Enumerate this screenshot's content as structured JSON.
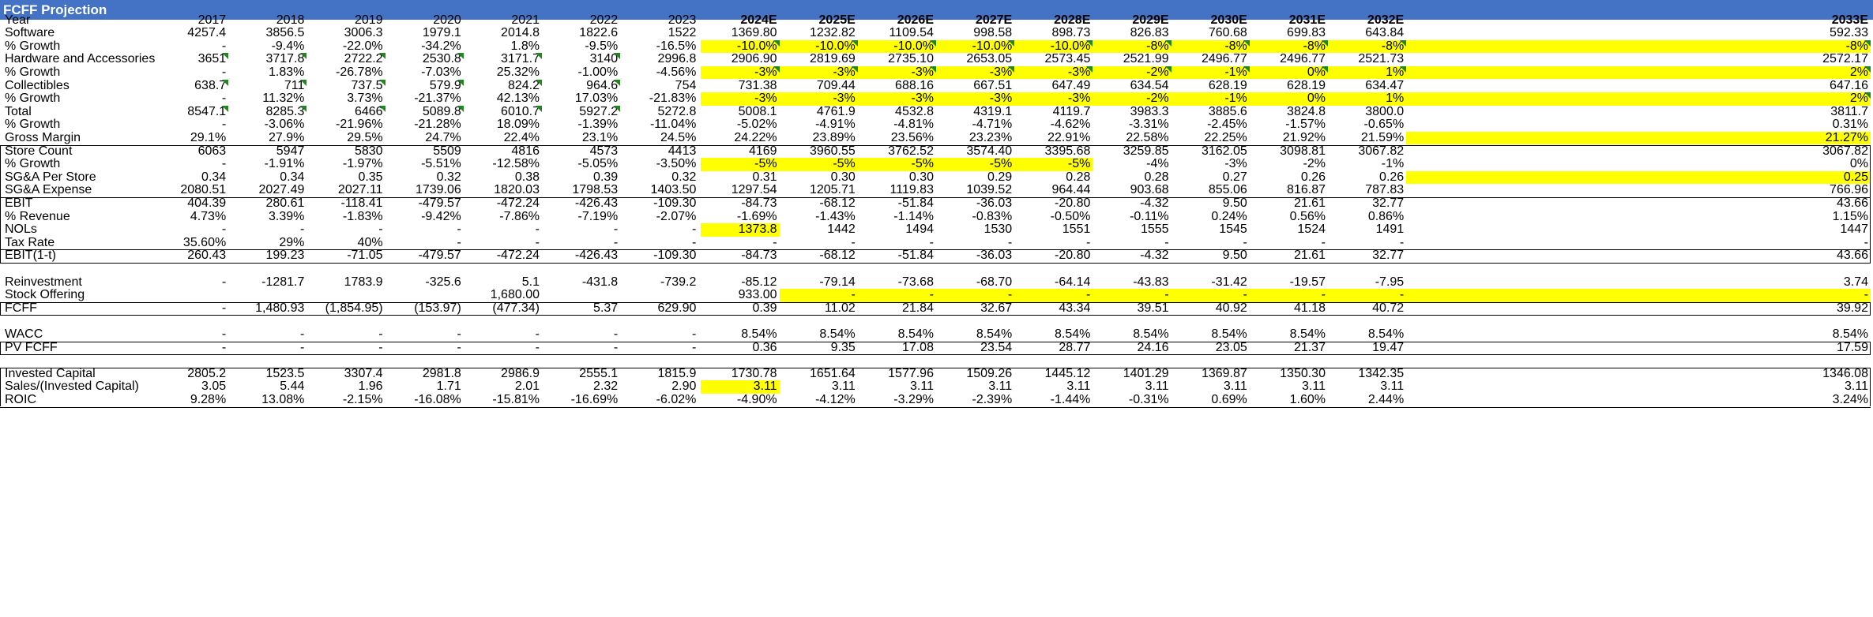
{
  "title": "FCFF Projection",
  "colors": {
    "header": "#4472c4",
    "highlight": "#ffff00",
    "note_triangle": "#1e8a1e"
  },
  "columns": [
    "2017",
    "2018",
    "2019",
    "2020",
    "2021",
    "2022",
    "2023",
    "2024E",
    "2025E",
    "2026E",
    "2027E",
    "2028E",
    "2029E",
    "2030E",
    "2031E",
    "2032E",
    "2033E"
  ],
  "rows": [
    {
      "label": "Year",
      "header": true,
      "values": [
        "2017",
        "2018",
        "2019",
        "2020",
        "2021",
        "2022",
        "2023",
        "2024E",
        "2025E",
        "2026E",
        "2027E",
        "2028E",
        "2029E",
        "2030E",
        "2031E",
        "2032E",
        "2033E"
      ]
    },
    {
      "label": "Software",
      "values": [
        "4257.4",
        "3856.5",
        "3006.3",
        "1979.1",
        "2014.8",
        "1822.6",
        "1522",
        "1369.80",
        "1232.82",
        "1109.54",
        "998.58",
        "898.73",
        "826.83",
        "760.68",
        "699.83",
        "643.84",
        "592.33"
      ]
    },
    {
      "label": "% Growth",
      "values": [
        "-",
        "-9.4%",
        "-22.0%",
        "-34.2%",
        "1.8%",
        "-9.5%",
        "-16.5%",
        "-10.0%",
        "-10.0%",
        "-10.0%",
        "-10.0%",
        "-10.0%",
        "-8%",
        "-8%",
        "-8%",
        "-8%",
        "-8%"
      ],
      "hl": [
        7,
        8,
        9,
        10,
        11,
        12,
        13,
        14,
        15,
        16
      ],
      "tri": [
        7,
        8,
        9,
        10,
        11,
        12,
        13,
        14,
        15,
        16
      ]
    },
    {
      "label": "Hardware and Accessories",
      "values": [
        "3651",
        "3717.8",
        "2722.2",
        "2530.8",
        "3171.7",
        "3140",
        "2996.8",
        "2906.90",
        "2819.69",
        "2735.10",
        "2653.05",
        "2573.45",
        "2521.99",
        "2496.77",
        "2496.77",
        "2521.73",
        "2572.17"
      ],
      "tri": [
        0,
        1,
        2,
        3,
        4,
        5
      ]
    },
    {
      "label": "% Growth",
      "values": [
        "-",
        "1.83%",
        "-26.78%",
        "-7.03%",
        "25.32%",
        "-1.00%",
        "-4.56%",
        "-3%",
        "-3%",
        "-3%",
        "-3%",
        "-3%",
        "-2%",
        "-1%",
        "0%",
        "1%",
        "2%"
      ],
      "hl": [
        7,
        8,
        9,
        10,
        11,
        12,
        13,
        14,
        15,
        16
      ],
      "tri": [
        7,
        8,
        9,
        10,
        11,
        12,
        13,
        14,
        15,
        16
      ]
    },
    {
      "label": "Collectibles",
      "values": [
        "638.7",
        "711",
        "737.5",
        "579.9",
        "824.2",
        "964.6",
        "754",
        "731.38",
        "709.44",
        "688.16",
        "667.51",
        "647.49",
        "634.54",
        "628.19",
        "628.19",
        "634.47",
        "647.16"
      ],
      "tri": [
        0,
        1,
        2,
        3,
        4,
        5
      ]
    },
    {
      "label": "% Growth",
      "values": [
        "-",
        "11.32%",
        "3.73%",
        "-21.37%",
        "42.13%",
        "17.03%",
        "-21.83%",
        "-3%",
        "-3%",
        "-3%",
        "-3%",
        "-3%",
        "-2%",
        "-1%",
        "0%",
        "1%",
        "2%"
      ],
      "hl": [
        7,
        8,
        9,
        10,
        11,
        12,
        13,
        14,
        15,
        16
      ],
      "tri": [
        16
      ]
    },
    {
      "label": "Total",
      "values": [
        "8547.1",
        "8285.3",
        "6466",
        "5089.8",
        "6010.7",
        "5927.2",
        "5272.8",
        "5008.1",
        "4761.9",
        "4532.8",
        "4319.1",
        "4119.7",
        "3983.3",
        "3885.6",
        "3824.8",
        "3800.0",
        "3811.7"
      ],
      "tri": [
        0,
        1,
        2,
        3,
        4,
        5
      ]
    },
    {
      "label": "% Growth",
      "values": [
        "-",
        "-3.06%",
        "-21.96%",
        "-21.28%",
        "18.09%",
        "-1.39%",
        "-11.04%",
        "-5.02%",
        "-4.91%",
        "-4.81%",
        "-4.71%",
        "-4.62%",
        "-3.31%",
        "-2.45%",
        "-1.57%",
        "-0.65%",
        "0.31%"
      ]
    },
    {
      "label": "Gross Margin",
      "values": [
        "29.1%",
        "27.9%",
        "29.5%",
        "24.7%",
        "22.4%",
        "23.1%",
        "24.5%",
        "24.22%",
        "23.89%",
        "23.56%",
        "23.23%",
        "22.91%",
        "22.58%",
        "22.25%",
        "21.92%",
        "21.59%",
        "21.27%"
      ],
      "hl": [
        16
      ]
    },
    {
      "label": "Store Count",
      "values": [
        "6063",
        "5947",
        "5830",
        "5509",
        "4816",
        "4573",
        "4413",
        "4169",
        "3960.55",
        "3762.52",
        "3574.40",
        "3395.68",
        "3259.85",
        "3162.05",
        "3098.81",
        "3067.82",
        "3067.82"
      ]
    },
    {
      "label": "% Growth",
      "values": [
        "-",
        "-1.91%",
        "-1.97%",
        "-5.51%",
        "-12.58%",
        "-5.05%",
        "-3.50%",
        "-5%",
        "-5%",
        "-5%",
        "-5%",
        "-5%",
        "-4%",
        "-3%",
        "-2%",
        "-1%",
        "0%"
      ],
      "hl": [
        7,
        8,
        9,
        10,
        11
      ]
    },
    {
      "label": "SG&A Per Store",
      "values": [
        "0.34",
        "0.34",
        "0.35",
        "0.32",
        "0.38",
        "0.39",
        "0.32",
        "0.31",
        "0.30",
        "0.30",
        "0.29",
        "0.28",
        "0.28",
        "0.27",
        "0.26",
        "0.26",
        "0.25"
      ],
      "hl": [
        16
      ]
    },
    {
      "label": "SG&A Expense",
      "values": [
        "2080.51",
        "2027.49",
        "2027.11",
        "1739.06",
        "1820.03",
        "1798.53",
        "1403.50",
        "1297.54",
        "1205.71",
        "1119.83",
        "1039.52",
        "964.44",
        "903.68",
        "855.06",
        "816.87",
        "787.83",
        "766.96"
      ]
    },
    {
      "label": "EBIT",
      "values": [
        "404.39",
        "280.61",
        "-118.41",
        "-479.57",
        "-472.24",
        "-426.43",
        "-109.30",
        "-84.73",
        "-68.12",
        "-51.84",
        "-36.03",
        "-20.80",
        "-4.32",
        "9.50",
        "21.61",
        "32.77",
        "43.66"
      ]
    },
    {
      "label": "% Revenue",
      "values": [
        "4.73%",
        "3.39%",
        "-1.83%",
        "-9.42%",
        "-7.86%",
        "-7.19%",
        "-2.07%",
        "-1.69%",
        "-1.43%",
        "-1.14%",
        "-0.83%",
        "-0.50%",
        "-0.11%",
        "0.24%",
        "0.56%",
        "0.86%",
        "1.15%"
      ]
    },
    {
      "label": "NOLs",
      "values": [
        "-",
        "-",
        "-",
        "-",
        "-",
        "-",
        "-",
        "1373.8",
        "1442",
        "1494",
        "1530",
        "1551",
        "1555",
        "1545",
        "1524",
        "1491",
        "1447"
      ],
      "hl": [
        7
      ]
    },
    {
      "label": "Tax Rate",
      "values": [
        "35.60%",
        "29%",
        "40%",
        "-",
        "-",
        "-",
        "-",
        "-",
        "-",
        "-",
        "-",
        "-",
        "-",
        "-",
        "-",
        "-",
        "-"
      ]
    },
    {
      "label": "EBIT(1-t)",
      "values": [
        "260.43",
        "199.23",
        "-71.05",
        "-479.57",
        "-472.24",
        "-426.43",
        "-109.30",
        "-84.73",
        "-68.12",
        "-51.84",
        "-36.03",
        "-20.80",
        "-4.32",
        "9.50",
        "21.61",
        "32.77",
        "43.66"
      ]
    },
    {
      "label": "",
      "values": [
        "",
        "",
        "",
        "",
        "",
        "",
        "",
        "",
        "",
        "",
        "",
        "",
        "",
        "",
        "",
        "",
        ""
      ]
    },
    {
      "label": "Reinvestment",
      "values": [
        "-",
        "-1281.7",
        "1783.9",
        "-325.6",
        "5.1",
        "-431.8",
        "-739.2",
        "-85.12",
        "-79.14",
        "-73.68",
        "-68.70",
        "-64.14",
        "-43.83",
        "-31.42",
        "-19.57",
        "-7.95",
        "3.74"
      ]
    },
    {
      "label": "Stock Offering",
      "values": [
        "",
        "",
        "",
        "",
        "1,680.00",
        "",
        "",
        "933.00",
        "-",
        "-",
        "-",
        "-",
        "-",
        "-",
        "-",
        "-",
        "-"
      ],
      "hl": [
        8,
        9,
        10,
        11,
        12,
        13,
        14,
        15,
        16
      ]
    },
    {
      "label": "FCFF",
      "values": [
        "-",
        "1,480.93",
        "(1,854.95)",
        "(153.97)",
        "(477.34)",
        "5.37",
        "629.90",
        "0.39",
        "11.02",
        "21.84",
        "32.67",
        "43.34",
        "39.51",
        "40.92",
        "41.18",
        "40.72",
        "39.92"
      ]
    },
    {
      "label": "",
      "values": [
        "",
        "",
        "",
        "",
        "",
        "",
        "",
        "",
        "",
        "",
        "",
        "",
        "",
        "",
        "",
        "",
        ""
      ]
    },
    {
      "label": "WACC",
      "values": [
        "-",
        "-",
        "-",
        "-",
        "-",
        "-",
        "-",
        "8.54%",
        "8.54%",
        "8.54%",
        "8.54%",
        "8.54%",
        "8.54%",
        "8.54%",
        "8.54%",
        "8.54%",
        "8.54%"
      ]
    },
    {
      "label": "PV FCFF",
      "values": [
        "-",
        "-",
        "-",
        "-",
        "-",
        "-",
        "-",
        "0.36",
        "9.35",
        "17.08",
        "23.54",
        "28.77",
        "24.16",
        "23.05",
        "21.37",
        "19.47",
        "17.59"
      ]
    },
    {
      "label": "",
      "values": [
        "",
        "",
        "",
        "",
        "",
        "",
        "",
        "",
        "",
        "",
        "",
        "",
        "",
        "",
        "",
        "",
        ""
      ]
    },
    {
      "label": "Invested Capital",
      "values": [
        "2805.2",
        "1523.5",
        "3307.4",
        "2981.8",
        "2986.9",
        "2555.1",
        "1815.9",
        "1730.78",
        "1651.64",
        "1577.96",
        "1509.26",
        "1445.12",
        "1401.29",
        "1369.87",
        "1350.30",
        "1342.35",
        "1346.08"
      ]
    },
    {
      "label": "Sales/(Invested Capital)",
      "values": [
        "3.05",
        "5.44",
        "1.96",
        "1.71",
        "2.01",
        "2.32",
        "2.90",
        "3.11",
        "3.11",
        "3.11",
        "3.11",
        "3.11",
        "3.11",
        "3.11",
        "3.11",
        "3.11",
        "3.11"
      ],
      "hl": [
        7
      ]
    },
    {
      "label": "ROIC",
      "values": [
        "9.28%",
        "13.08%",
        "-2.15%",
        "-16.08%",
        "-15.81%",
        "-16.69%",
        "-6.02%",
        "-4.90%",
        "-4.12%",
        "-3.29%",
        "-2.39%",
        "-1.44%",
        "-0.31%",
        "0.69%",
        "1.60%",
        "2.44%",
        "3.24%"
      ]
    }
  ]
}
